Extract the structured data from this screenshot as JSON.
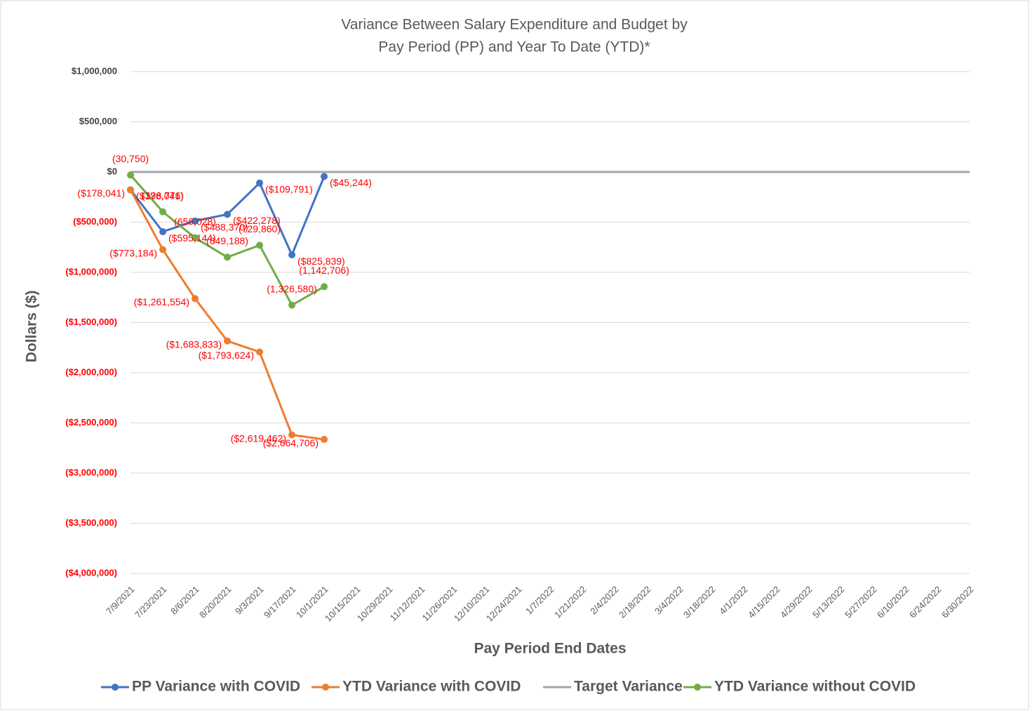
{
  "chart_data": {
    "type": "line",
    "title": [
      "Variance Between Salary Expenditure and Budget by",
      "Pay Period (PP) and Year To Date (YTD)*"
    ],
    "x_label": "Pay Period End Dates",
    "y_label": "Dollars ($)",
    "categories": [
      "7/9/2021",
      "7/23/2021",
      "8/6/2021",
      "8/20/2021",
      "9/3/2021",
      "9/17/2021",
      "10/1/2021",
      "10/15/2021",
      "10/29/2021",
      "11/12/2021",
      "11/26/2021",
      "12/10/2021",
      "12/24/2021",
      "1/7/2022",
      "1/21/2022",
      "2/4/2022",
      "2/18/2022",
      "3/4/2022",
      "3/18/2022",
      "4/1/2022",
      "4/15/2022",
      "4/29/2022",
      "5/13/2022",
      "5/27/2022",
      "6/10/2022",
      "6/24/2022",
      "6/30/2022"
    ],
    "series": [
      {
        "name": "PP Variance with COVID",
        "color": "#4472c4",
        "markers": true,
        "values": [
          -178041,
          -595144,
          -488370,
          -422278,
          -109791,
          -825839,
          -45244,
          null,
          null,
          null,
          null,
          null,
          null,
          null,
          null,
          null,
          null,
          null,
          null,
          null,
          null,
          null,
          null,
          null,
          null,
          null,
          null
        ],
        "value_labels": [
          "($178,041)",
          "($595,144)",
          "($488,370)",
          "($422,278)",
          "($109,791)",
          "($825,839)",
          "($45,244)",
          null,
          null,
          null,
          null,
          null,
          null,
          null,
          null,
          null,
          null,
          null,
          null,
          null,
          null,
          null,
          null,
          null,
          null,
          null,
          null
        ]
      },
      {
        "name": "YTD Variance with COVID",
        "color": "#ed7d31",
        "markers": true,
        "values": [
          -178041,
          -773184,
          -1261554,
          -1683833,
          -1793624,
          -2619462,
          -2664706,
          null,
          null,
          null,
          null,
          null,
          null,
          null,
          null,
          null,
          null,
          null,
          null,
          null,
          null,
          null,
          null,
          null,
          null,
          null,
          null
        ],
        "value_labels": [
          "($178,041)",
          "($773,184)",
          "($1,261,554)",
          "($1,683,833)",
          "($1,793,624)",
          "($2,619,462)",
          "($2,664,706)",
          null,
          null,
          null,
          null,
          null,
          null,
          null,
          null,
          null,
          null,
          null,
          null,
          null,
          null,
          null,
          null,
          null,
          null,
          null,
          null
        ]
      },
      {
        "name": "Target Variance",
        "color": "#a5a5a5",
        "markers": false,
        "values": [
          0,
          0,
          0,
          0,
          0,
          0,
          0,
          0,
          0,
          0,
          0,
          0,
          0,
          0,
          0,
          0,
          0,
          0,
          0,
          0,
          0,
          0,
          0,
          0,
          0,
          0,
          0
        ]
      },
      {
        "name": "YTD Variance without COVID",
        "color": "#70ad47",
        "markers": true,
        "values": [
          -30750,
          -396776,
          -656028,
          -849188,
          -729860,
          -1326580,
          -1142706,
          null,
          null,
          null,
          null,
          null,
          null,
          null,
          null,
          null,
          null,
          null,
          null,
          null,
          null,
          null,
          null,
          null,
          null,
          null,
          null
        ],
        "value_labels": [
          "(30,750)",
          "(396,776)",
          "(656,028)",
          "(849,188)",
          "(729,860)",
          "(1,326,580)",
          "(1,142,706)",
          null,
          null,
          null,
          null,
          null,
          null,
          null,
          null,
          null,
          null,
          null,
          null,
          null,
          null,
          null,
          null,
          null,
          null,
          null,
          null
        ]
      }
    ],
    "ylim": [
      -4000000,
      1000000
    ],
    "yticks": [
      {
        "value": 1000000,
        "label": "$1,000,000"
      },
      {
        "value": 500000,
        "label": "$500,000"
      },
      {
        "value": 0,
        "label": "$0"
      },
      {
        "value": -500000,
        "label": "($500,000)"
      },
      {
        "value": -1000000,
        "label": "($1,000,000)"
      },
      {
        "value": -1500000,
        "label": "($1,500,000)"
      },
      {
        "value": -2000000,
        "label": "($2,000,000)"
      },
      {
        "value": -2500000,
        "label": "($2,500,000)"
      },
      {
        "value": -3000000,
        "label": "($3,000,000)"
      },
      {
        "value": -3500000,
        "label": "($3,500,000)"
      },
      {
        "value": -4000000,
        "label": "($4,000,000)"
      }
    ],
    "grid": true,
    "legend": "bottom",
    "label_color": "#ff0000"
  }
}
